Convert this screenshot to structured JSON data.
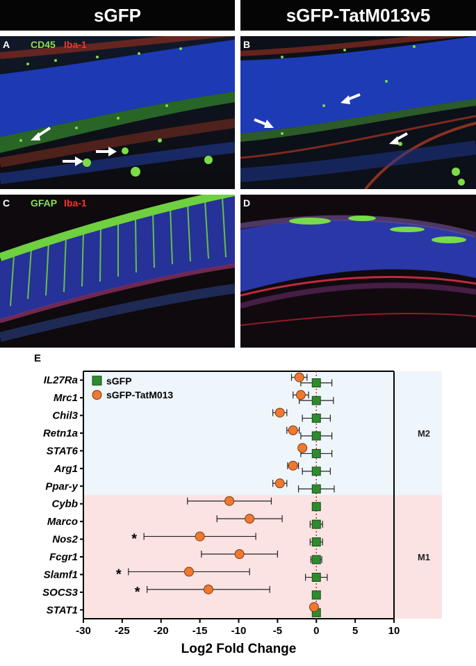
{
  "headers": {
    "left": "sGFP",
    "right": "sGFP-TatM013v5"
  },
  "panels": {
    "A": {
      "label": "A",
      "stain1": "CD45",
      "stain2": "Iba-1"
    },
    "B": {
      "label": "B"
    },
    "C": {
      "label": "C",
      "stain1": "GFAP",
      "stain2": "Iba-1"
    },
    "D": {
      "label": "D"
    }
  },
  "colors": {
    "green_stain": "#8be04a",
    "red_stain": "#ff3030",
    "m2_band": "#eef5fb",
    "m1_band": "#fbe3e3",
    "sgfp_marker": "#2e8b2e",
    "tat_marker": "#f07830"
  },
  "chart_data": {
    "panel_label": "E",
    "type": "scatter",
    "orientation": "horizontal",
    "xlabel": "Log2 Fold Change",
    "xlim": [
      -30,
      10
    ],
    "xticks": [
      -30,
      -25,
      -20,
      -15,
      -10,
      -5,
      0,
      5,
      10
    ],
    "reference_line_x": 0,
    "categories": [
      "IL27Ra",
      "Mrc1",
      "Chil3",
      "Retn1a",
      "STAT6",
      "Arg1",
      "Ppar-y",
      "Cybb",
      "Marco",
      "Nos2",
      "Fcgr1",
      "Slamf1",
      "SOCS3",
      "STAT1"
    ],
    "groups": [
      {
        "label": "M2",
        "from": "IL27Ra",
        "to": "Ppar-y"
      },
      {
        "label": "M1",
        "from": "Cybb",
        "to": "STAT1"
      }
    ],
    "legend_position": "top-left",
    "series": [
      {
        "name": "sGFP",
        "marker": "square",
        "values": [
          0,
          0,
          0,
          0,
          0,
          0,
          0,
          0,
          0,
          0,
          0,
          0,
          0,
          0
        ],
        "err": [
          2.0,
          2.2,
          1.8,
          2.0,
          2.0,
          1.8,
          2.3,
          0,
          0.8,
          0.8,
          0.7,
          1.4,
          0,
          0
        ]
      },
      {
        "name": "sGFP-TatM013",
        "marker": "circle",
        "values": [
          -2.2,
          -2.0,
          -4.7,
          -3.0,
          -1.8,
          -3.0,
          -4.7,
          -11.2,
          -8.6,
          -15.0,
          -9.9,
          -16.4,
          -13.9,
          -0.3
        ],
        "err": [
          1.0,
          1.0,
          0.9,
          0.8,
          0,
          0.7,
          0.9,
          5.4,
          4.2,
          7.2,
          4.9,
          7.8,
          7.9,
          0
        ]
      }
    ],
    "annotations": [
      {
        "text": "*",
        "category": "Nos2"
      },
      {
        "text": "*",
        "category": "Slamf1"
      },
      {
        "text": "*",
        "category": "SOCS3"
      }
    ]
  }
}
